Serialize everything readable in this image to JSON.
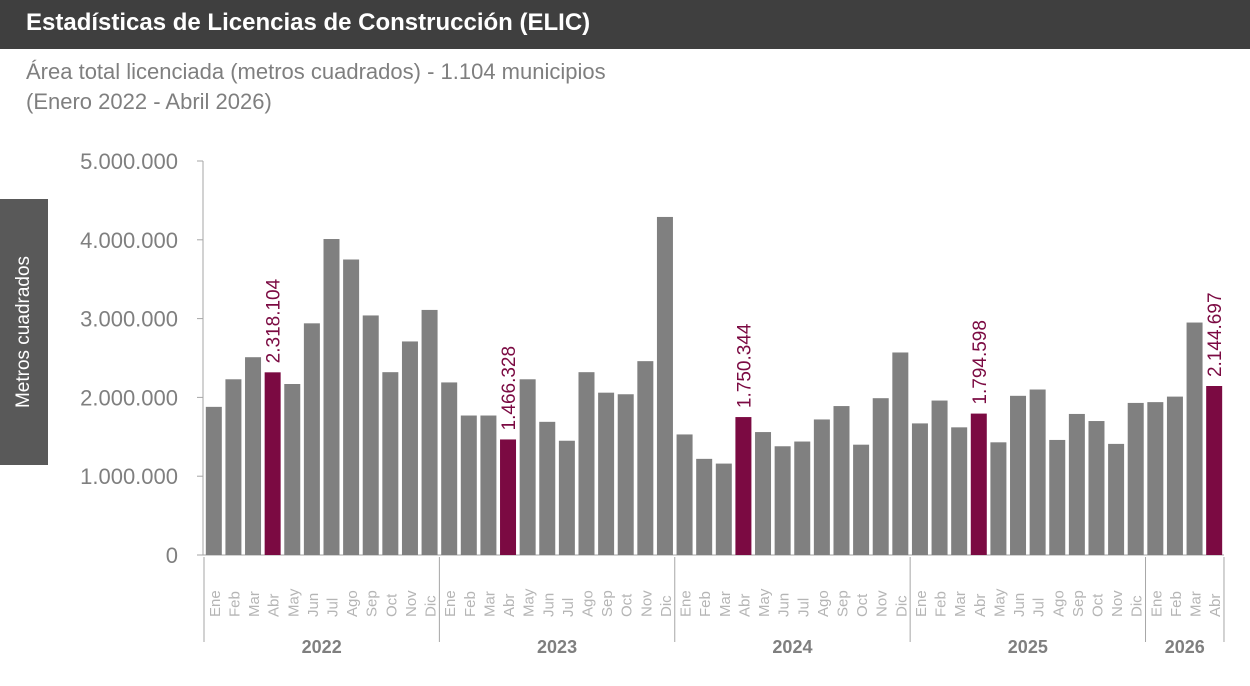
{
  "header": {
    "title": "Estadísticas de Licencias de Construcción (ELIC)"
  },
  "subtitle": {
    "line1": "Área total licenciada (metros cuadrados) - 1.104 municipios",
    "line2": "(Enero 2022 - Abril 2026)"
  },
  "colors": {
    "bar": "#808080",
    "highlight": "#7b0a42",
    "axis": "#a6a6a6",
    "header_bg": "#3f3f3f",
    "ylabel_bg": "#595959"
  },
  "chart_data": {
    "type": "bar",
    "ylabel": "Metros cuadrados",
    "ylim": [
      0,
      5000000
    ],
    "yticks": [
      0,
      1000000,
      2000000,
      3000000,
      4000000,
      5000000
    ],
    "ytick_labels": [
      "0",
      "1.000.000",
      "2.000.000",
      "3.000.000",
      "4.000.000",
      "5.000.000"
    ],
    "grid": false,
    "legend": "none",
    "categories": [
      "Ene",
      "Feb",
      "Mar",
      "Abr",
      "May",
      "Jun",
      "Jul",
      "Ago",
      "Sep",
      "Oct",
      "Nov",
      "Dic",
      "Ene",
      "Feb",
      "Mar",
      "Abr",
      "May",
      "Jun",
      "Jul",
      "Ago",
      "Sep",
      "Oct",
      "Nov",
      "Dic",
      "Ene",
      "Feb",
      "Mar",
      "Abr",
      "May",
      "Jun",
      "Jul",
      "Ago",
      "Sep",
      "Oct",
      "Nov",
      "Dic",
      "Ene",
      "Feb",
      "Mar",
      "Abr",
      "May",
      "Jun",
      "Jul",
      "Ago",
      "Sep",
      "Oct",
      "Nov",
      "Dic",
      "Ene",
      "Feb",
      "Mar",
      "Abr"
    ],
    "years": [
      {
        "label": "2022",
        "months": 12
      },
      {
        "label": "2023",
        "months": 12
      },
      {
        "label": "2024",
        "months": 12
      },
      {
        "label": "2025",
        "months": 12
      },
      {
        "label": "2026",
        "months": 4
      }
    ],
    "values": [
      1880000,
      2230000,
      2510000,
      2318104,
      2170000,
      2940000,
      4010000,
      3750000,
      3040000,
      2320000,
      2710000,
      3110000,
      2190000,
      1770000,
      1770000,
      1466328,
      2230000,
      1690000,
      1450000,
      2320000,
      2060000,
      2040000,
      2460000,
      4290000,
      1530000,
      1220000,
      1160000,
      1750344,
      1560000,
      1380000,
      1440000,
      1720000,
      1890000,
      1400000,
      1990000,
      2570000,
      1670000,
      1960000,
      1620000,
      1794598,
      1430000,
      2020000,
      2100000,
      1460000,
      1790000,
      1700000,
      1410000,
      1930000,
      1940000,
      2010000,
      2950000,
      2144697
    ],
    "highlighted": [
      {
        "index": 3,
        "label": "2.318.104"
      },
      {
        "index": 15,
        "label": "1.466.328"
      },
      {
        "index": 27,
        "label": "1.750.344"
      },
      {
        "index": 39,
        "label": "1.794.598"
      },
      {
        "index": 51,
        "label": "2.144.697"
      }
    ]
  }
}
